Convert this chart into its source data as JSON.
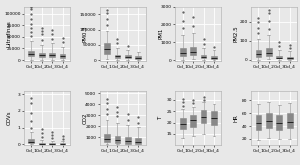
{
  "panels": [
    {
      "title": "Ultrafinas",
      "data": {
        "Col_1": {
          "q1": 8000,
          "med": 13000,
          "q3": 19000,
          "whislo": 500,
          "whishi": 42000,
          "fliers_high": [
            52000,
            60000,
            68000,
            78000,
            88000,
            100000,
            110000,
            115000
          ]
        },
        "Col_2": {
          "q1": 6000,
          "med": 10000,
          "q3": 15000,
          "whislo": 400,
          "whishi": 33000,
          "fliers_high": [
            44000,
            55000,
            62000,
            70000
          ]
        },
        "Col_3": {
          "q1": 7000,
          "med": 11000,
          "q3": 16000,
          "whislo": 600,
          "whishi": 36000,
          "fliers_high": [
            46000,
            56000,
            65000
          ]
        },
        "Col_4": {
          "q1": 5000,
          "med": 9000,
          "q3": 13000,
          "whislo": 400,
          "whishi": 28000,
          "fliers_high": [
            38000,
            48000
          ]
        }
      },
      "ylim": [
        -2000,
        115000
      ],
      "yticks": [
        0,
        25000,
        50000,
        75000,
        100000
      ]
    },
    {
      "title": "PM0.3",
      "data": {
        "Col_1": {
          "q1": 20000,
          "med": 35000,
          "q3": 55000,
          "whislo": 2000,
          "whishi": 95000,
          "fliers_high": [
            115000,
            135000,
            155000,
            165000
          ]
        },
        "Col_2": {
          "q1": 7000,
          "med": 12000,
          "q3": 18000,
          "whislo": 800,
          "whishi": 40000,
          "fliers_high": [
            55000,
            68000
          ]
        },
        "Col_3": {
          "q1": 6000,
          "med": 10000,
          "q3": 15000,
          "whislo": 600,
          "whishi": 32000,
          "fliers_high": [
            45000
          ]
        },
        "Col_4": {
          "q1": 4000,
          "med": 7000,
          "q3": 12000,
          "whislo": 400,
          "whishi": 26000,
          "fliers_high": []
        }
      },
      "ylim": [
        -3000,
        175000
      ],
      "yticks": [
        0,
        50000,
        100000,
        150000
      ]
    },
    {
      "title": "PM1",
      "data": {
        "Col_1": {
          "q1": 250,
          "med": 420,
          "q3": 700,
          "whislo": 30,
          "whishi": 1400,
          "fliers_high": [
            1800,
            2200,
            2700
          ]
        },
        "Col_2": {
          "q1": 280,
          "med": 450,
          "q3": 750,
          "whislo": 35,
          "whishi": 1500,
          "fliers_high": [
            1900,
            2400
          ]
        },
        "Col_3": {
          "q1": 90,
          "med": 160,
          "q3": 280,
          "whislo": 15,
          "whishi": 650,
          "fliers_high": [
            900,
            1200
          ]
        },
        "Col_4": {
          "q1": 70,
          "med": 120,
          "q3": 220,
          "whislo": 10,
          "whishi": 550,
          "fliers_high": [
            750
          ]
        }
      },
      "ylim": [
        -50,
        3000
      ],
      "yticks": [
        0,
        1000,
        2000,
        3000
      ]
    },
    {
      "title": "PM2.5",
      "data": {
        "Col_1": {
          "q1": 18,
          "med": 30,
          "q3": 52,
          "whislo": 2,
          "whishi": 110,
          "fliers_high": [
            140,
            170,
            200,
            220
          ]
        },
        "Col_2": {
          "q1": 22,
          "med": 38,
          "q3": 65,
          "whislo": 3,
          "whishi": 130,
          "fliers_high": [
            165,
            205,
            245,
            260
          ]
        },
        "Col_3": {
          "q1": 8,
          "med": 13,
          "q3": 23,
          "whislo": 1,
          "whishi": 55,
          "fliers_high": [
            75,
            95
          ]
        },
        "Col_4": {
          "q1": 5,
          "med": 9,
          "q3": 18,
          "whislo": 1,
          "whishi": 45,
          "fliers_high": [
            65,
            80
          ]
        }
      },
      "ylim": [
        -5,
        280
      ],
      "yticks": [
        0,
        100,
        200
      ]
    },
    {
      "title": "COVs",
      "data": {
        "Col_1": {
          "q1": 0.06,
          "med": 0.14,
          "q3": 0.3,
          "whislo": 0.005,
          "whishi": 0.75,
          "fliers_high": [
            1.0,
            1.4,
            1.9,
            2.5,
            2.8
          ]
        },
        "Col_2": {
          "q1": 0.02,
          "med": 0.04,
          "q3": 0.09,
          "whislo": 0.002,
          "whishi": 0.28,
          "fliers_high": [
            0.45,
            0.65,
            0.9
          ]
        },
        "Col_3": {
          "q1": 0.02,
          "med": 0.04,
          "q3": 0.08,
          "whislo": 0.002,
          "whishi": 0.22,
          "fliers_high": [
            0.38,
            0.58,
            0.75
          ]
        },
        "Col_4": {
          "q1": 0.02,
          "med": 0.04,
          "q3": 0.08,
          "whislo": 0.002,
          "whishi": 0.22,
          "fliers_high": [
            0.32,
            0.48
          ]
        }
      },
      "ylim": [
        -0.05,
        3.2
      ],
      "yticks": [
        0,
        1,
        2,
        3
      ]
    },
    {
      "title": "CO2",
      "data": {
        "Col_1": {
          "q1": 550,
          "med": 850,
          "q3": 1300,
          "whislo": 380,
          "whishi": 2600,
          "fliers_high": [
            3100,
            3600,
            4100,
            4500
          ]
        },
        "Col_2": {
          "q1": 480,
          "med": 730,
          "q3": 1150,
          "whislo": 370,
          "whishi": 2300,
          "fliers_high": [
            2900,
            3300,
            3700
          ]
        },
        "Col_3": {
          "q1": 430,
          "med": 670,
          "q3": 1050,
          "whislo": 360,
          "whishi": 2100,
          "fliers_high": [
            2600,
            3100
          ]
        },
        "Col_4": {
          "q1": 410,
          "med": 620,
          "q3": 950,
          "whislo": 355,
          "whishi": 1900,
          "fliers_high": [
            2300,
            2800
          ]
        }
      },
      "ylim": [
        300,
        5200
      ],
      "yticks": [
        1000,
        2000,
        3000,
        4000,
        5000
      ]
    },
    {
      "title": "T",
      "data": {
        "Col_1": {
          "q1": 17,
          "med": 19.5,
          "q3": 22,
          "whislo": 13,
          "whishi": 26,
          "fliers_high": [
            27.5,
            29,
            30.5
          ]
        },
        "Col_2": {
          "q1": 18,
          "med": 21,
          "q3": 23.5,
          "whislo": 14,
          "whishi": 27,
          "fliers_high": [
            28.5,
            30
          ]
        },
        "Col_3": {
          "q1": 20,
          "med": 22.5,
          "q3": 25.5,
          "whislo": 15,
          "whishi": 29,
          "fliers_high": [
            30,
            31.5
          ]
        },
        "Col_4": {
          "q1": 19,
          "med": 22,
          "q3": 25,
          "whislo": 14,
          "whishi": 28,
          "fliers_high": []
        }
      },
      "ylim": [
        10,
        34
      ],
      "yticks": [
        15,
        20,
        25,
        30
      ]
    },
    {
      "title": "HR",
      "data": {
        "Col_1": {
          "q1": 33,
          "med": 44,
          "q3": 57,
          "whislo": 18,
          "whishi": 74,
          "fliers_high": []
        },
        "Col_2": {
          "q1": 37,
          "med": 48,
          "q3": 61,
          "whislo": 21,
          "whishi": 78,
          "fliers_high": []
        },
        "Col_3": {
          "q1": 34,
          "med": 45,
          "q3": 57,
          "whislo": 19,
          "whishi": 73,
          "fliers_high": []
        },
        "Col_4": {
          "q1": 37,
          "med": 47,
          "q3": 60,
          "whislo": 20,
          "whishi": 76,
          "fliers_high": []
        }
      },
      "ylim": [
        10,
        95
      ],
      "yticks": [
        20,
        40,
        60,
        80
      ]
    }
  ],
  "categories": [
    "Col_1",
    "Col_2",
    "Col_3",
    "Col_4"
  ],
  "colors": [
    "#F08080",
    "#8DB83A",
    "#29C4BC",
    "#A97DC9"
  ],
  "bg_color": "#E8E8E8",
  "grid_color": "#FFFFFF",
  "flier_marker": ".",
  "flier_size": 1.2
}
